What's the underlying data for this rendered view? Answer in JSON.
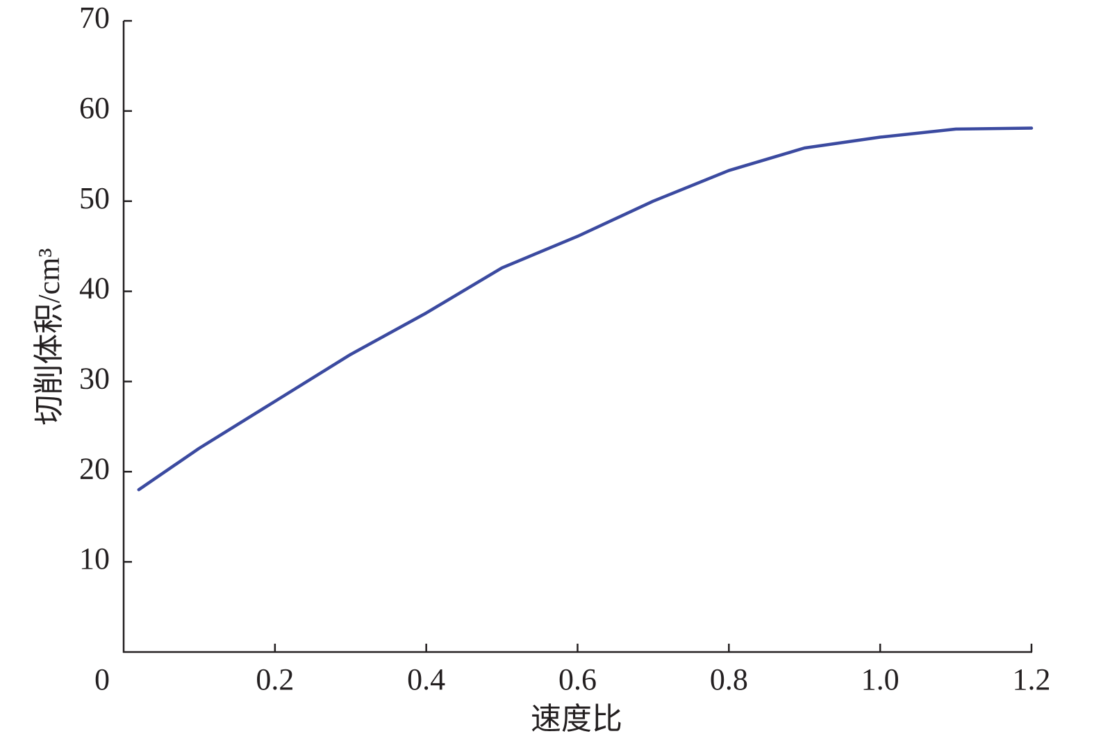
{
  "chart_data": {
    "type": "line",
    "xlabel": "速度比",
    "ylabel": "切削体积/cm³",
    "x": [
      0.02,
      0.1,
      0.2,
      0.3,
      0.4,
      0.5,
      0.6,
      0.7,
      0.8,
      0.9,
      1.0,
      1.1,
      1.2
    ],
    "series": [
      {
        "color": "#3b4aa0",
        "values": [
          18,
          22.6,
          27.8,
          33.0,
          37.6,
          42.6,
          46.1,
          50.0,
          53.4,
          55.9,
          57.1,
          58.0,
          58.1
        ]
      }
    ],
    "xlim": [
      0,
      1.2
    ],
    "ylim": [
      0,
      70
    ],
    "xticks": [
      0,
      0.2,
      0.4,
      0.6,
      0.8,
      {
        "value": 1,
        "label": "1.0"
      },
      1.2
    ],
    "yticks": [
      10,
      20,
      30,
      40,
      50,
      60,
      70
    ]
  }
}
